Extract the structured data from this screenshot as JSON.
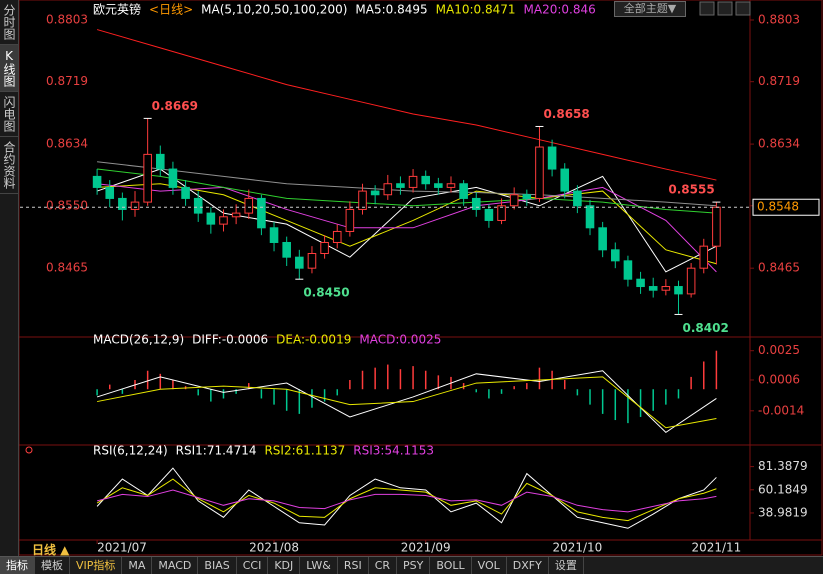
{
  "ui": {
    "side_tabs": [
      "分时图",
      "K线图",
      "闪电图",
      "合约资料"
    ],
    "theme_button": "全部主题▼",
    "period": "日线 ▲",
    "bottom_tabs": [
      "指标",
      "模板",
      "VIP指标",
      "MA",
      "MACD",
      "BIAS",
      "CCI",
      "KDJ",
      "LW&",
      "RSI",
      "CR",
      "PSY",
      "BOLL",
      "VOL",
      "DXFY",
      "设置"
    ]
  },
  "chart_data": [
    {
      "type": "candlestick",
      "title": "欧元英镑",
      "period": "<日线>",
      "ma_label": "MA(5,10,20,50,100,200)",
      "xlim": [
        -6.1,
        51.5
      ],
      "ylim": [
        0.8374,
        0.8803
      ],
      "yticks": [
        0.8803,
        0.8719,
        0.8634,
        {
          "value": 0.855,
          "label": "0.8550"
        },
        0.8465
      ],
      "xticks": [
        {
          "value": 0,
          "label": "2021/07"
        },
        {
          "value": 14,
          "label": "2021/08"
        },
        {
          "value": 26,
          "label": "2021/09"
        },
        {
          "value": 38,
          "label": "2021/10"
        },
        {
          "value": 49,
          "label": "2021/11"
        }
      ],
      "up_color": "#ff3c3c",
      "down_color": "#00c890",
      "last_price": 0.8548,
      "open": [
        0.859,
        0.8575,
        0.856,
        0.8545,
        0.8555,
        0.862,
        0.86,
        0.8575,
        0.856,
        0.854,
        0.8525,
        0.8535,
        0.854,
        0.856,
        0.852,
        0.85,
        0.848,
        0.8465,
        0.8485,
        0.85,
        0.8515,
        0.8545,
        0.857,
        0.8565,
        0.858,
        0.8575,
        0.859,
        0.858,
        0.8575,
        0.858,
        0.856,
        0.8545,
        0.853,
        0.855,
        0.8565,
        0.856,
        0.863,
        0.86,
        0.857,
        0.855,
        0.852,
        0.849,
        0.8475,
        0.845,
        0.844,
        0.8435,
        0.844,
        0.843,
        0.8465,
        0.8495
      ],
      "high": [
        0.86,
        0.8585,
        0.8568,
        0.857,
        0.8669,
        0.8632,
        0.861,
        0.8585,
        0.857,
        0.8548,
        0.8545,
        0.8552,
        0.8572,
        0.8565,
        0.8528,
        0.8508,
        0.849,
        0.8495,
        0.851,
        0.8525,
        0.8556,
        0.858,
        0.8578,
        0.8592,
        0.859,
        0.86,
        0.8598,
        0.8588,
        0.859,
        0.8585,
        0.8568,
        0.8552,
        0.856,
        0.8575,
        0.8572,
        0.8658,
        0.864,
        0.8608,
        0.8578,
        0.8558,
        0.8528,
        0.85,
        0.8482,
        0.846,
        0.8452,
        0.845,
        0.8448,
        0.8472,
        0.8505,
        0.8555
      ],
      "low": [
        0.8565,
        0.8548,
        0.853,
        0.8535,
        0.855,
        0.859,
        0.8565,
        0.855,
        0.8528,
        0.8512,
        0.8515,
        0.8525,
        0.8532,
        0.851,
        0.8488,
        0.8468,
        0.845,
        0.8458,
        0.8478,
        0.8492,
        0.8508,
        0.8538,
        0.8552,
        0.8558,
        0.8565,
        0.8568,
        0.8572,
        0.8565,
        0.8568,
        0.855,
        0.8535,
        0.852,
        0.8525,
        0.8545,
        0.855,
        0.8555,
        0.859,
        0.856,
        0.854,
        0.851,
        0.848,
        0.8465,
        0.844,
        0.843,
        0.8425,
        0.8428,
        0.8402,
        0.8425,
        0.8458,
        0.847
      ],
      "close": [
        0.8575,
        0.856,
        0.8545,
        0.8555,
        0.862,
        0.86,
        0.8575,
        0.856,
        0.854,
        0.8525,
        0.8535,
        0.854,
        0.856,
        0.852,
        0.85,
        0.848,
        0.8465,
        0.8485,
        0.85,
        0.8515,
        0.8545,
        0.857,
        0.8565,
        0.858,
        0.8575,
        0.859,
        0.858,
        0.8575,
        0.858,
        0.856,
        0.8545,
        0.853,
        0.855,
        0.8565,
        0.856,
        0.863,
        0.86,
        0.857,
        0.855,
        0.852,
        0.849,
        0.8475,
        0.845,
        0.844,
        0.8435,
        0.844,
        0.843,
        0.8465,
        0.8495,
        0.8548
      ],
      "annotations": [
        {
          "index": 4,
          "kind": "high",
          "label": "0.8669",
          "color": "#ff4f4f"
        },
        {
          "index": 16,
          "kind": "low",
          "label": "0.8450",
          "color": "#4fe08f"
        },
        {
          "index": 35,
          "kind": "high",
          "label": "0.8658",
          "color": "#ff4f4f"
        },
        {
          "index": 46,
          "kind": "low",
          "label": "0.8402",
          "color": "#4fe08f"
        },
        {
          "index": 49,
          "kind": "high",
          "label": "0.8555",
          "color": "#ff4f4f"
        }
      ],
      "ma": {
        "x": [
          0,
          5,
          10,
          15,
          20,
          25,
          30,
          35,
          40,
          45,
          49
        ],
        "series": [
          {
            "name": "MA5:0.8495",
            "color": "#ffffff",
            "values": [
              0.857,
              0.86,
              0.854,
              0.8525,
              0.848,
              0.856,
              0.8575,
              0.855,
              0.859,
              0.846,
              0.8495
            ]
          },
          {
            "name": "MA10:0.8471",
            "color": "#e8e800",
            "values": [
              0.8575,
              0.858,
              0.8565,
              0.853,
              0.8495,
              0.853,
              0.857,
              0.856,
              0.857,
              0.849,
              0.8471
            ]
          },
          {
            "name": "MA20:0.846",
            "color": "#e040e0",
            "values": [
              0.858,
              0.857,
              0.8575,
              0.8545,
              0.852,
              0.852,
              0.855,
              0.856,
              0.8575,
              0.853,
              0.846
            ]
          },
          {
            "color": "#30d030",
            "values": [
              0.86,
              0.859,
              0.8575,
              0.856,
              0.8555,
              0.855,
              0.8555,
              0.856,
              0.8555,
              0.8545,
              0.854
            ]
          },
          {
            "color": "#909090",
            "values": [
              0.861,
              0.86,
              0.859,
              0.858,
              0.8575,
              0.857,
              0.8568,
              0.8565,
              0.856,
              0.8555,
              0.855
            ]
          },
          {
            "color": "#ff2020",
            "values": [
              0.879,
              0.8765,
              0.874,
              0.8715,
              0.8695,
              0.8675,
              0.866,
              0.864,
              0.862,
              0.86,
              0.8585
            ]
          }
        ]
      }
    },
    {
      "type": "macd",
      "title": "MACD(26,12,9)",
      "xlim": [
        -6.1,
        51.5
      ],
      "ylim": [
        -0.0031,
        0.003
      ],
      "yticks": [
        0.0025,
        0.0006,
        -0.0014
      ],
      "up_color": "#ff3c3c",
      "down_color": "#00c890",
      "hist_name": "MACD:0.0025",
      "hist_color": "#e040e0",
      "histogram": [
        -0.0004,
        0.0003,
        -0.0003,
        0.0006,
        0.0012,
        0.001,
        0.0006,
        0.0002,
        -0.0004,
        -0.0008,
        -0.0006,
        -0.0003,
        0.0004,
        -0.0006,
        -0.001,
        -0.0014,
        -0.0016,
        -0.0012,
        -0.0008,
        -0.0004,
        0.0006,
        0.0012,
        0.0014,
        0.0016,
        0.0013,
        0.0015,
        0.0012,
        0.0009,
        0.0008,
        0.0004,
        -0.0002,
        -0.0006,
        -0.0003,
        0.0002,
        0.0004,
        0.0014,
        0.0012,
        0.0006,
        -0.0004,
        -0.001,
        -0.0016,
        -0.002,
        -0.0022,
        -0.0018,
        -0.0014,
        -0.001,
        -0.0006,
        0.0008,
        0.0018,
        0.0025
      ],
      "x": [
        0,
        5,
        10,
        15,
        20,
        25,
        30,
        35,
        40,
        45,
        49
      ],
      "series": [
        {
          "name": "DIFF:-0.0006",
          "color": "#ffffff",
          "values": [
            -0.0005,
            0.0008,
            -0.0002,
            0.0004,
            -0.0018,
            -0.0005,
            0.001,
            0.0005,
            0.0012,
            -0.0028,
            -0.0006
          ]
        },
        {
          "name": "DEA:-0.0019",
          "color": "#e8e800",
          "values": [
            -0.0008,
            0.0,
            0.0002,
            0.0,
            -0.001,
            -0.0008,
            0.0004,
            0.0006,
            0.0008,
            -0.0025,
            -0.0019
          ]
        }
      ]
    },
    {
      "type": "line",
      "title": "RSI(6,12,24)",
      "xlim": [
        -6.1,
        51.5
      ],
      "ylim": [
        17,
        92
      ],
      "yticks": [
        81.3879,
        60.1849,
        38.9819
      ],
      "x": [
        0,
        2,
        4,
        6,
        8,
        10,
        12,
        14,
        16,
        18,
        20,
        22,
        24,
        26,
        28,
        30,
        32,
        34,
        36,
        38,
        40,
        42,
        44,
        46,
        48,
        49
      ],
      "series": [
        {
          "name": "RSI1:71.4714",
          "color": "#ffffff",
          "values": [
            45,
            70,
            55,
            80,
            50,
            35,
            60,
            45,
            30,
            28,
            55,
            70,
            62,
            60,
            40,
            48,
            30,
            75,
            55,
            35,
            30,
            25,
            38,
            52,
            60,
            71.47
          ]
        },
        {
          "name": "RSI2:61.1137",
          "color": "#e8e800",
          "values": [
            48,
            62,
            55,
            70,
            52,
            40,
            55,
            48,
            36,
            35,
            52,
            62,
            60,
            58,
            46,
            50,
            38,
            66,
            55,
            40,
            35,
            32,
            42,
            52,
            57,
            61.11
          ]
        },
        {
          "name": "RSI3:54.1153",
          "color": "#e040e0",
          "values": [
            50,
            56,
            54,
            60,
            53,
            46,
            52,
            50,
            44,
            43,
            51,
            56,
            56,
            55,
            50,
            51,
            46,
            58,
            54,
            46,
            42,
            40,
            45,
            50,
            52,
            54.12
          ]
        }
      ]
    }
  ]
}
